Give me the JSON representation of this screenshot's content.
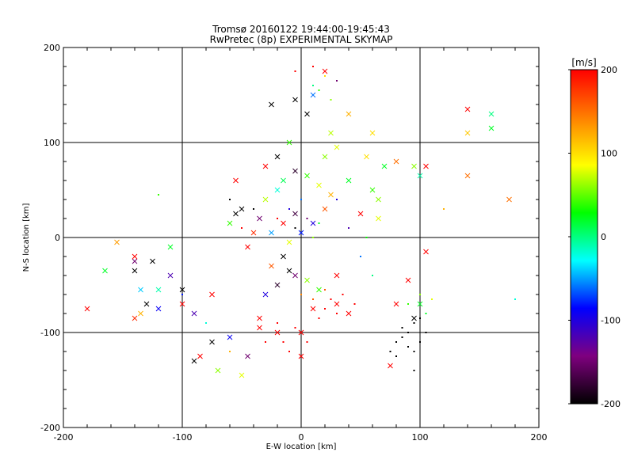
{
  "chart_data": {
    "type": "scatter",
    "title": "Tromsø 20160122 19:44:00-19:45:43",
    "subtitle": "RwPretec (8p) EXPERIMENTAL SKYMAP",
    "xlabel": "E-W location [km]",
    "ylabel": "N-S location [km]",
    "xlim": [
      -200,
      200
    ],
    "ylim": [
      -200,
      200
    ],
    "x_ticks": [
      "-200",
      "-100",
      "0",
      "100",
      "200"
    ],
    "y_ticks": [
      "-200",
      "-100",
      "0",
      "100",
      "200"
    ],
    "grid": true,
    "colorbar": {
      "label": "[m/s]",
      "range": [
        -200,
        200
      ],
      "ticks": [
        "200",
        "100",
        "0",
        "-100",
        "-200"
      ],
      "colormap": [
        "#000000",
        "#7f007f",
        "#0000ff",
        "#00ffff",
        "#00ff00",
        "#ffff00",
        "#ff7f00",
        "#ff0000"
      ]
    },
    "series": [
      {
        "marker": "x",
        "points": [
          [
            -140,
            -25,
            -150
          ],
          [
            -135,
            -55,
            -40
          ],
          [
            -135,
            -80,
            120
          ],
          [
            -140,
            -85,
            180
          ],
          [
            -155,
            -5,
            130
          ],
          [
            -140,
            -20,
            200
          ],
          [
            -125,
            -25,
            -200
          ],
          [
            -120,
            -55,
            -10
          ],
          [
            -120,
            -75,
            -90
          ],
          [
            -110,
            -10,
            20
          ],
          [
            -110,
            -40,
            -120
          ],
          [
            -100,
            -55,
            -200
          ],
          [
            -100,
            -70,
            200
          ],
          [
            -90,
            -80,
            -120
          ],
          [
            -75,
            -60,
            200
          ],
          [
            -75,
            -110,
            -200
          ],
          [
            -70,
            -140,
            60
          ],
          [
            -60,
            -105,
            -90
          ],
          [
            -50,
            -145,
            80
          ],
          [
            -45,
            -125,
            -150
          ],
          [
            -35,
            -85,
            200
          ],
          [
            -30,
            -60,
            -100
          ],
          [
            -20,
            -50,
            -180
          ],
          [
            -25,
            -30,
            160
          ],
          [
            -15,
            -20,
            -200
          ],
          [
            -10,
            -35,
            -200
          ],
          [
            -5,
            -40,
            -150
          ],
          [
            5,
            -45,
            60
          ],
          [
            15,
            -55,
            40
          ],
          [
            -45,
            -10,
            200
          ],
          [
            -40,
            5,
            180
          ],
          [
            -35,
            20,
            -150
          ],
          [
            -50,
            30,
            -200
          ],
          [
            -30,
            40,
            70
          ],
          [
            -20,
            50,
            -20
          ],
          [
            -15,
            60,
            10
          ],
          [
            -5,
            70,
            -180
          ],
          [
            5,
            65,
            40
          ],
          [
            15,
            55,
            80
          ],
          [
            25,
            45,
            120
          ],
          [
            20,
            30,
            160
          ],
          [
            10,
            15,
            -100
          ],
          [
            0,
            5,
            -80
          ],
          [
            -5,
            25,
            -170
          ],
          [
            -15,
            15,
            200
          ],
          [
            -25,
            5,
            -50
          ],
          [
            -10,
            -5,
            80
          ],
          [
            -55,
            60,
            200
          ],
          [
            -60,
            15,
            40
          ],
          [
            -55,
            25,
            -200
          ],
          [
            -30,
            75,
            200
          ],
          [
            -20,
            85,
            -200
          ],
          [
            -10,
            100,
            40
          ],
          [
            5,
            130,
            -200
          ],
          [
            10,
            150,
            -60
          ],
          [
            -25,
            140,
            -200
          ],
          [
            -5,
            145,
            -200
          ],
          [
            20,
            175,
            200
          ],
          [
            40,
            130,
            120
          ],
          [
            30,
            95,
            80
          ],
          [
            20,
            85,
            60
          ],
          [
            25,
            110,
            70
          ],
          [
            60,
            110,
            100
          ],
          [
            55,
            85,
            100
          ],
          [
            80,
            80,
            150
          ],
          [
            70,
            75,
            20
          ],
          [
            95,
            75,
            60
          ],
          [
            105,
            75,
            200
          ],
          [
            100,
            65,
            -10
          ],
          [
            140,
            110,
            110
          ],
          [
            140,
            135,
            200
          ],
          [
            160,
            130,
            0
          ],
          [
            160,
            115,
            20
          ],
          [
            140,
            65,
            150
          ],
          [
            175,
            40,
            150
          ],
          [
            90,
            -45,
            200
          ],
          [
            105,
            -15,
            200
          ],
          [
            100,
            -70,
            20
          ],
          [
            95,
            -85,
            -200
          ],
          [
            80,
            -70,
            200
          ],
          [
            75,
            -135,
            200
          ],
          [
            30,
            -70,
            200
          ],
          [
            40,
            -80,
            200
          ],
          [
            10,
            -75,
            200
          ],
          [
            -20,
            -100,
            200
          ],
          [
            0,
            -125,
            200
          ],
          [
            -35,
            -95,
            200
          ],
          [
            -85,
            -125,
            200
          ],
          [
            -140,
            -35,
            -200
          ],
          [
            -165,
            -35,
            20
          ],
          [
            -90,
            -130,
            -200
          ],
          [
            -130,
            -70,
            -200
          ],
          [
            -180,
            -75,
            200
          ],
          [
            0,
            -100,
            200
          ],
          [
            30,
            -40,
            200
          ],
          [
            50,
            25,
            200
          ],
          [
            40,
            60,
            20
          ],
          [
            60,
            50,
            40
          ],
          [
            65,
            40,
            60
          ],
          [
            65,
            20,
            80
          ]
        ]
      },
      {
        "marker": "dot",
        "points": [
          [
            80,
            -110,
            -200
          ],
          [
            85,
            -105,
            -200
          ],
          [
            90,
            -115,
            -200
          ],
          [
            95,
            -120,
            -200
          ],
          [
            100,
            -110,
            -200
          ],
          [
            80,
            -125,
            -200
          ],
          [
            90,
            -100,
            -200
          ],
          [
            105,
            -100,
            -200
          ],
          [
            85,
            -95,
            -200
          ],
          [
            95,
            -90,
            -200
          ],
          [
            100,
            -85,
            -200
          ],
          [
            95,
            -140,
            -200
          ],
          [
            75,
            -120,
            -200
          ],
          [
            20,
            -75,
            200
          ],
          [
            25,
            -65,
            200
          ],
          [
            30,
            -80,
            200
          ],
          [
            15,
            -85,
            200
          ],
          [
            -5,
            -95,
            200
          ],
          [
            -15,
            -110,
            200
          ],
          [
            -10,
            -120,
            200
          ],
          [
            -20,
            -90,
            200
          ],
          [
            -30,
            -110,
            200
          ],
          [
            5,
            -110,
            200
          ],
          [
            35,
            -60,
            200
          ],
          [
            45,
            -70,
            200
          ],
          [
            10,
            -65,
            160
          ],
          [
            0,
            -60,
            140
          ],
          [
            20,
            -55,
            160
          ],
          [
            -5,
            10,
            -200
          ],
          [
            5,
            20,
            -150
          ],
          [
            -10,
            30,
            -100
          ],
          [
            0,
            40,
            -60
          ],
          [
            10,
            0,
            60
          ],
          [
            15,
            15,
            20
          ],
          [
            -20,
            20,
            200
          ],
          [
            -40,
            30,
            -200
          ],
          [
            -50,
            10,
            200
          ],
          [
            -60,
            40,
            -200
          ],
          [
            10,
            160,
            0
          ],
          [
            20,
            170,
            100
          ],
          [
            30,
            165,
            -150
          ],
          [
            15,
            155,
            40
          ],
          [
            25,
            145,
            60
          ],
          [
            -5,
            175,
            200
          ],
          [
            10,
            180,
            200
          ],
          [
            90,
            -70,
            40
          ],
          [
            100,
            -60,
            60
          ],
          [
            110,
            -65,
            80
          ],
          [
            105,
            -80,
            20
          ],
          [
            -120,
            45,
            40
          ],
          [
            -80,
            -90,
            -20
          ],
          [
            -60,
            -120,
            120
          ],
          [
            -100,
            -60,
            -80
          ],
          [
            120,
            30,
            120
          ],
          [
            180,
            -65,
            -20
          ],
          [
            30,
            40,
            -100
          ],
          [
            40,
            10,
            -120
          ],
          [
            50,
            -20,
            -60
          ],
          [
            55,
            0,
            30
          ],
          [
            60,
            -40,
            0
          ]
        ]
      }
    ]
  }
}
